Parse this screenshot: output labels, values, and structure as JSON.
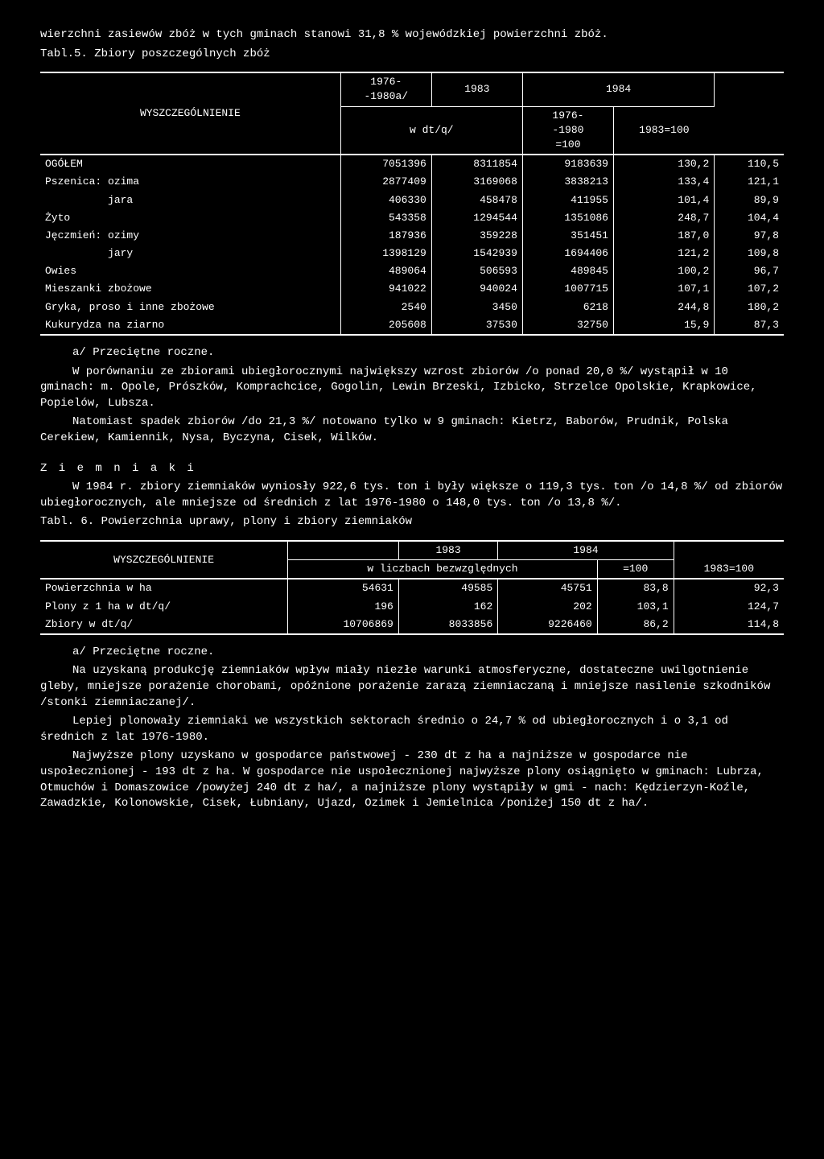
{
  "intro_line": "wierzchni zasiewów zbóż w tych gminach stanowi 31,8 % wojewódzkiej powierzchni zbóż.",
  "table5_caption": "Tabl.5. Zbiory poszczególnych zbóż",
  "table5": {
    "col_header_left": "WYSZCZEGÓLNIENIE",
    "col_1976_1980": "1976-\n-1980a/",
    "col_1983": "1983",
    "col_1984": "1984",
    "unit": "w dt/q/",
    "col_idx_1976_1980": "1976-\n-1980\n=100",
    "col_idx_1983": "1983=100",
    "rows": [
      {
        "label": "OGÓŁEM",
        "c1": "7051396",
        "c2": "8311854",
        "c3": "9183639",
        "c4": "130,2",
        "c5": "110,5"
      },
      {
        "label": "Pszenica: ozima",
        "c1": "2877409",
        "c2": "3169068",
        "c3": "3838213",
        "c4": "133,4",
        "c5": "121,1"
      },
      {
        "label": "          jara",
        "c1": "406330",
        "c2": "458478",
        "c3": "411955",
        "c4": "101,4",
        "c5": "89,9"
      },
      {
        "label": "Żyto",
        "c1": "543358",
        "c2": "1294544",
        "c3": "1351086",
        "c4": "248,7",
        "c5": "104,4"
      },
      {
        "label": "Jęczmień: ozimy",
        "c1": "187936",
        "c2": "359228",
        "c3": "351451",
        "c4": "187,0",
        "c5": "97,8"
      },
      {
        "label": "          jary",
        "c1": "1398129",
        "c2": "1542939",
        "c3": "1694406",
        "c4": "121,2",
        "c5": "109,8"
      },
      {
        "label": "Owies",
        "c1": "489064",
        "c2": "506593",
        "c3": "489845",
        "c4": "100,2",
        "c5": "96,7"
      },
      {
        "label": "Mieszanki zbożowe",
        "c1": "941022",
        "c2": "940024",
        "c3": "1007715",
        "c4": "107,1",
        "c5": "107,2"
      },
      {
        "label": "Gryka, proso i inne zbożowe",
        "c1": "2540",
        "c2": "3450",
        "c3": "6218",
        "c4": "244,8",
        "c5": "180,2"
      },
      {
        "label": "Kukurydza na ziarno",
        "c1": "205608",
        "c2": "37530",
        "c3": "32750",
        "c4": "15,9",
        "c5": "87,3"
      }
    ]
  },
  "footnote_a": "a/ Przeciętne roczne.",
  "para1": "W porównaniu ze zbiorami ubiegłorocznymi największy wzrost zbiorów /o ponad 20,0 %/ wystąpił w 10 gminach: m. Opole, Prószków, Komprachcice, Gogolin, Lewin Brzeski, Izbicko, Strzelce Opolskie, Krapkowice, Popielów, Lubsza.",
  "para2": "Natomiast spadek zbiorów /do 21,3 %/ notowano tylko w 9 gminach: Kietrz, Baborów, Prudnik, Polska Cerekiew, Kamiennik, Nysa, Byczyna, Cisek, Wilków.",
  "ziemniaki_title": "Z i e m n i a k i",
  "para3": "W 1984 r. zbiory ziemniaków wyniosły 922,6 tys. ton i były większe o 119,3 tys. ton /o 14,8 %/ od zbiorów ubiegłorocznych, ale mniejsze od średnich z lat 1976-1980 o 148,0 tys. ton /o 13,8 %/.",
  "table6_caption": "Tabl. 6. Powierzchnia uprawy, plony i zbiory ziemniaków",
  "table6": {
    "col_header_left": "WYSZCZEGÓLNIENIE",
    "col_1983": "1983",
    "col_1984": "1984",
    "unit": "w liczbach bezwzględnych",
    "col_idx_100": "=100",
    "col_idx_1983": "1983=100",
    "rows": [
      {
        "label": "Powierzchnia w ha",
        "c1": "54631",
        "c2": "49585",
        "c3": "45751",
        "c4": "83,8",
        "c5": "92,3"
      },
      {
        "label": "Plony z 1 ha w dt/q/",
        "c1": "196",
        "c2": "162",
        "c3": "202",
        "c4": "103,1",
        "c5": "124,7"
      },
      {
        "label": "Zbiory w dt/q/",
        "c1": "10706869",
        "c2": "8033856",
        "c3": "9226460",
        "c4": "86,2",
        "c5": "114,8"
      }
    ]
  },
  "footnote_a2": "a/ Przeciętne roczne.",
  "para4": "Na uzyskaną produkcję ziemniaków wpływ miały niezłe warunki atmosferyczne, dostateczne uwilgotnienie gleby, mniejsze porażenie chorobami, opóźnione porażenie zarazą ziemniaczaną i mniejsze nasilenie szkodników /stonki ziemniaczanej/.",
  "para5": "Lepiej plonowały ziemniaki we wszystkich sektorach średnio o 24,7 % od ubiegłorocznych i o 3,1  od średnich z lat 1976-1980.",
  "para6": "Najwyższe plony uzyskano w gospodarce państwowej - 230 dt z ha a najniższe w gospodarce nie uspołecznionej - 193 dt z ha. W gospodarce nie uspołecznionej najwyższe plony osiągnięto w gminach: Lubrza, Otmuchów i Domaszowice /powyżej 240 dt z ha/, a najniższe plony wystąpiły w gmi - nach: Kędzierzyn-Koźle, Zawadzkie, Kolonowskie, Cisek, Łubniany, Ujazd, Ozimek i Jemielnica /poniżej 150 dt z ha/."
}
